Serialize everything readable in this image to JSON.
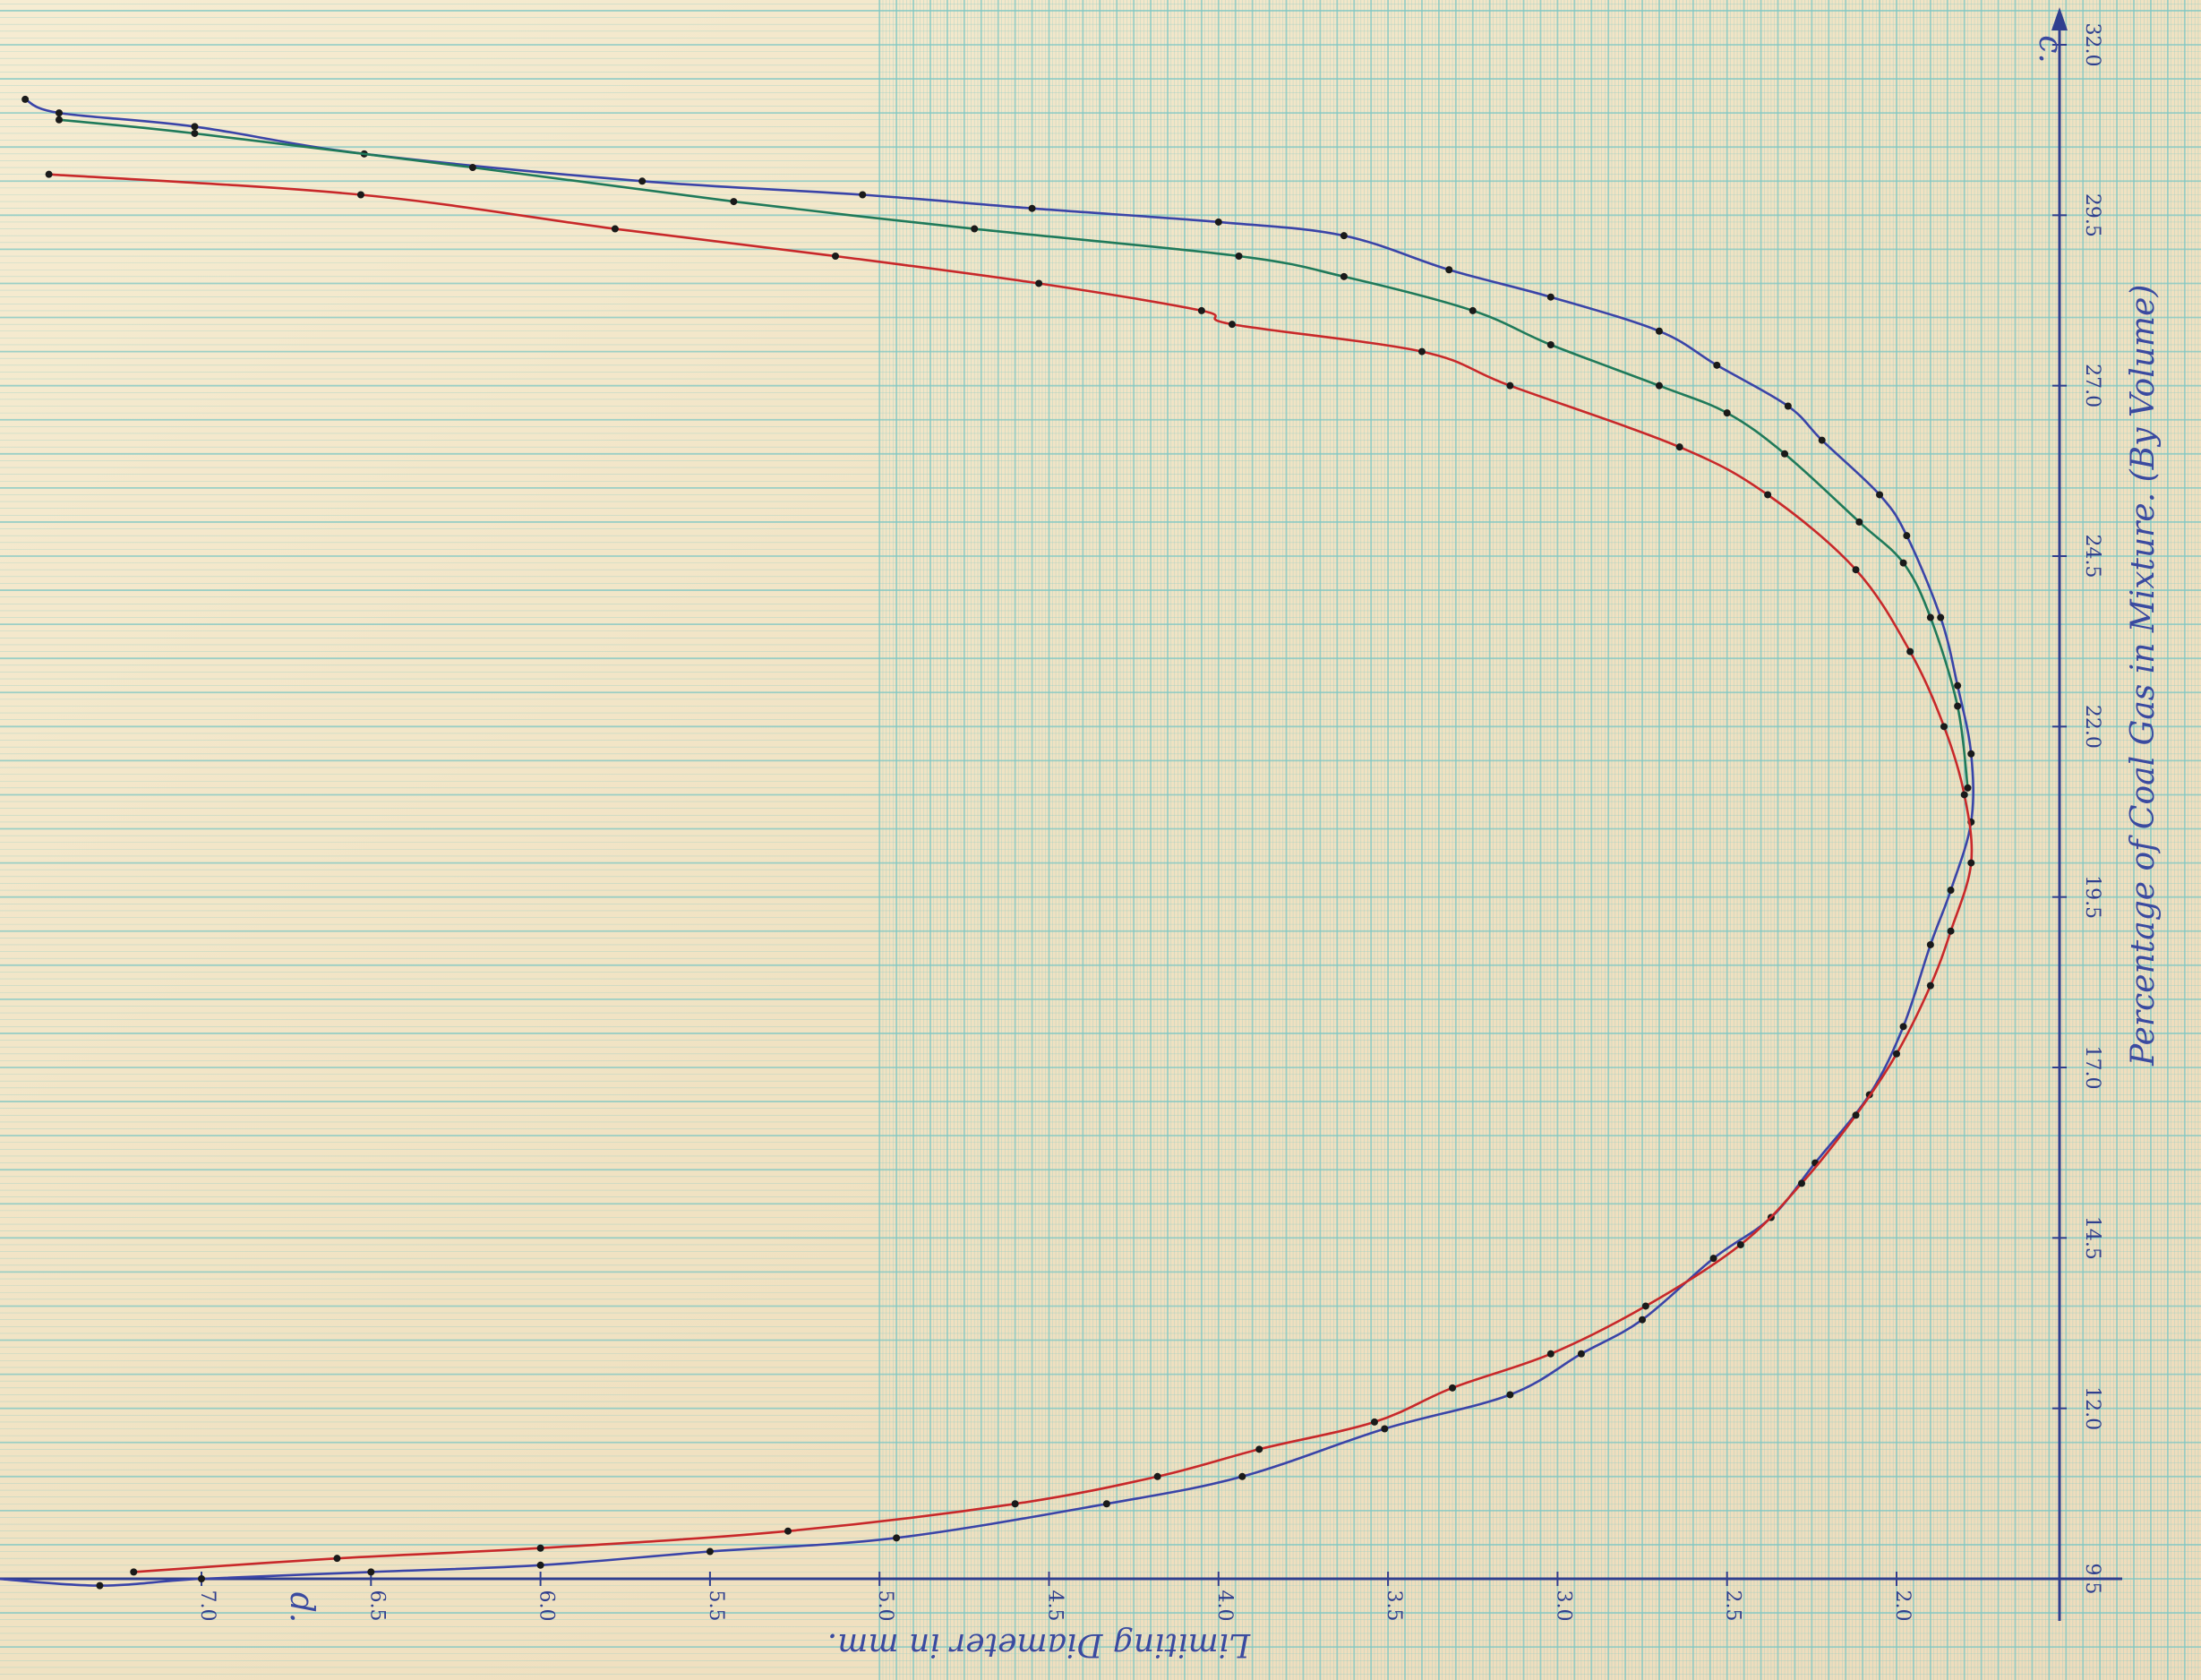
{
  "chart_data": {
    "type": "line",
    "title": "",
    "xlabel": "Limiting Diameter in mm.",
    "ylabel": "Percentage of Coal Gas in Mixture. (By Volume)",
    "x_axis_symbol": "d.",
    "y_axis_symbol": "c.",
    "xlim": [
      17.5,
      79
    ],
    "ylim": [
      9.5,
      32.0
    ],
    "x_ticks": [
      {
        "value": 70,
        "label": "7.0"
      },
      {
        "value": 65,
        "label": "6.5"
      },
      {
        "value": 60,
        "label": "6.0"
      },
      {
        "value": 55,
        "label": "5.5"
      },
      {
        "value": 50,
        "label": "5.0"
      },
      {
        "value": 45,
        "label": "4.5"
      },
      {
        "value": 40,
        "label": "4.0"
      },
      {
        "value": 35,
        "label": "3.5"
      },
      {
        "value": 30,
        "label": "3.0"
      },
      {
        "value": 25,
        "label": "2.5"
      },
      {
        "value": 20,
        "label": "2.0"
      }
    ],
    "y_ticks": [
      {
        "value": 9.5,
        "label": "9.5"
      },
      {
        "value": 12.0,
        "label": "12.0"
      },
      {
        "value": 14.5,
        "label": "14.5"
      },
      {
        "value": 17.0,
        "label": "17.0"
      },
      {
        "value": 19.5,
        "label": "19.5"
      },
      {
        "value": 22.0,
        "label": "22.0"
      },
      {
        "value": 24.5,
        "label": "24.5"
      },
      {
        "value": 27.0,
        "label": "27.0"
      },
      {
        "value": 29.5,
        "label": "29.5"
      },
      {
        "value": 32.0,
        "label": "32.0"
      }
    ],
    "x_reversed": true,
    "grid": true,
    "series": [
      {
        "color": "#3a44a8",
        "points": [
          [
            75.2,
            31.2
          ],
          [
            74.2,
            31.0
          ],
          [
            70.2,
            30.8
          ],
          [
            65.2,
            30.4
          ],
          [
            57.0,
            30.0
          ],
          [
            50.5,
            29.8
          ],
          [
            45.5,
            29.6
          ],
          [
            40.0,
            29.4
          ],
          [
            36.3,
            29.2
          ],
          [
            33.2,
            28.7
          ],
          [
            30.2,
            28.3
          ],
          [
            27.0,
            27.8
          ],
          [
            25.3,
            27.3
          ],
          [
            23.2,
            26.7
          ],
          [
            22.2,
            26.2
          ],
          [
            20.5,
            25.4
          ],
          [
            19.7,
            24.8
          ],
          [
            18.7,
            23.6
          ],
          [
            18.2,
            22.6
          ],
          [
            17.8,
            21.6
          ],
          [
            17.8,
            20.6
          ],
          [
            18.4,
            19.6
          ],
          [
            19.0,
            18.8
          ],
          [
            19.8,
            17.6
          ],
          [
            20.8,
            16.6
          ],
          [
            22.4,
            15.6
          ],
          [
            23.7,
            14.8
          ],
          [
            25.4,
            14.2
          ],
          [
            27.5,
            13.3
          ],
          [
            29.3,
            12.8
          ],
          [
            31.4,
            12.2
          ],
          [
            35.1,
            11.7
          ],
          [
            39.3,
            11.0
          ],
          [
            43.3,
            10.6
          ],
          [
            49.5,
            10.1
          ],
          [
            55.0,
            9.9
          ],
          [
            60.0,
            9.7
          ],
          [
            65.0,
            9.6
          ],
          [
            70.0,
            9.5
          ],
          [
            73.0,
            9.4
          ],
          [
            76.0,
            9.5
          ]
        ]
      },
      {
        "color": "#1f7a5a",
        "points": [
          [
            76.5,
            31.1
          ],
          [
            74.2,
            30.9
          ],
          [
            70.2,
            30.7
          ],
          [
            62.0,
            30.2
          ],
          [
            54.3,
            29.7
          ],
          [
            47.2,
            29.3
          ],
          [
            39.4,
            28.9
          ],
          [
            36.3,
            28.6
          ],
          [
            32.5,
            28.1
          ],
          [
            30.2,
            27.6
          ],
          [
            27.0,
            27.0
          ],
          [
            25.0,
            26.6
          ],
          [
            23.3,
            26.0
          ],
          [
            21.1,
            25.0
          ],
          [
            19.8,
            24.4
          ],
          [
            19.0,
            23.6
          ],
          [
            18.2,
            22.3
          ],
          [
            17.9,
            21.1
          ]
        ]
      },
      {
        "color": "#c8282a",
        "points": [
          [
            77.5,
            30.3
          ],
          [
            74.5,
            30.1
          ],
          [
            65.3,
            29.8
          ],
          [
            57.8,
            29.3
          ],
          [
            51.3,
            28.9
          ],
          [
            45.3,
            28.5
          ],
          [
            40.5,
            28.1
          ],
          [
            39.6,
            27.9
          ],
          [
            34.0,
            27.5
          ],
          [
            31.4,
            27.0
          ],
          [
            26.4,
            26.1
          ],
          [
            23.8,
            25.4
          ],
          [
            21.2,
            24.3
          ],
          [
            19.6,
            23.1
          ],
          [
            18.6,
            22.0
          ],
          [
            18.0,
            21.0
          ],
          [
            17.8,
            20.0
          ],
          [
            18.4,
            19.0
          ],
          [
            19.0,
            18.2
          ],
          [
            20.0,
            17.2
          ],
          [
            21.2,
            16.3
          ],
          [
            22.8,
            15.3
          ],
          [
            24.6,
            14.4
          ],
          [
            27.4,
            13.5
          ],
          [
            30.2,
            12.8
          ],
          [
            33.1,
            12.3
          ],
          [
            35.4,
            11.8
          ],
          [
            38.8,
            11.4
          ],
          [
            41.8,
            11.0
          ],
          [
            46.0,
            10.6
          ],
          [
            52.7,
            10.2
          ],
          [
            60.0,
            9.95
          ],
          [
            66.0,
            9.8
          ],
          [
            72.0,
            9.6
          ],
          [
            78.0,
            9.5
          ]
        ]
      }
    ]
  }
}
